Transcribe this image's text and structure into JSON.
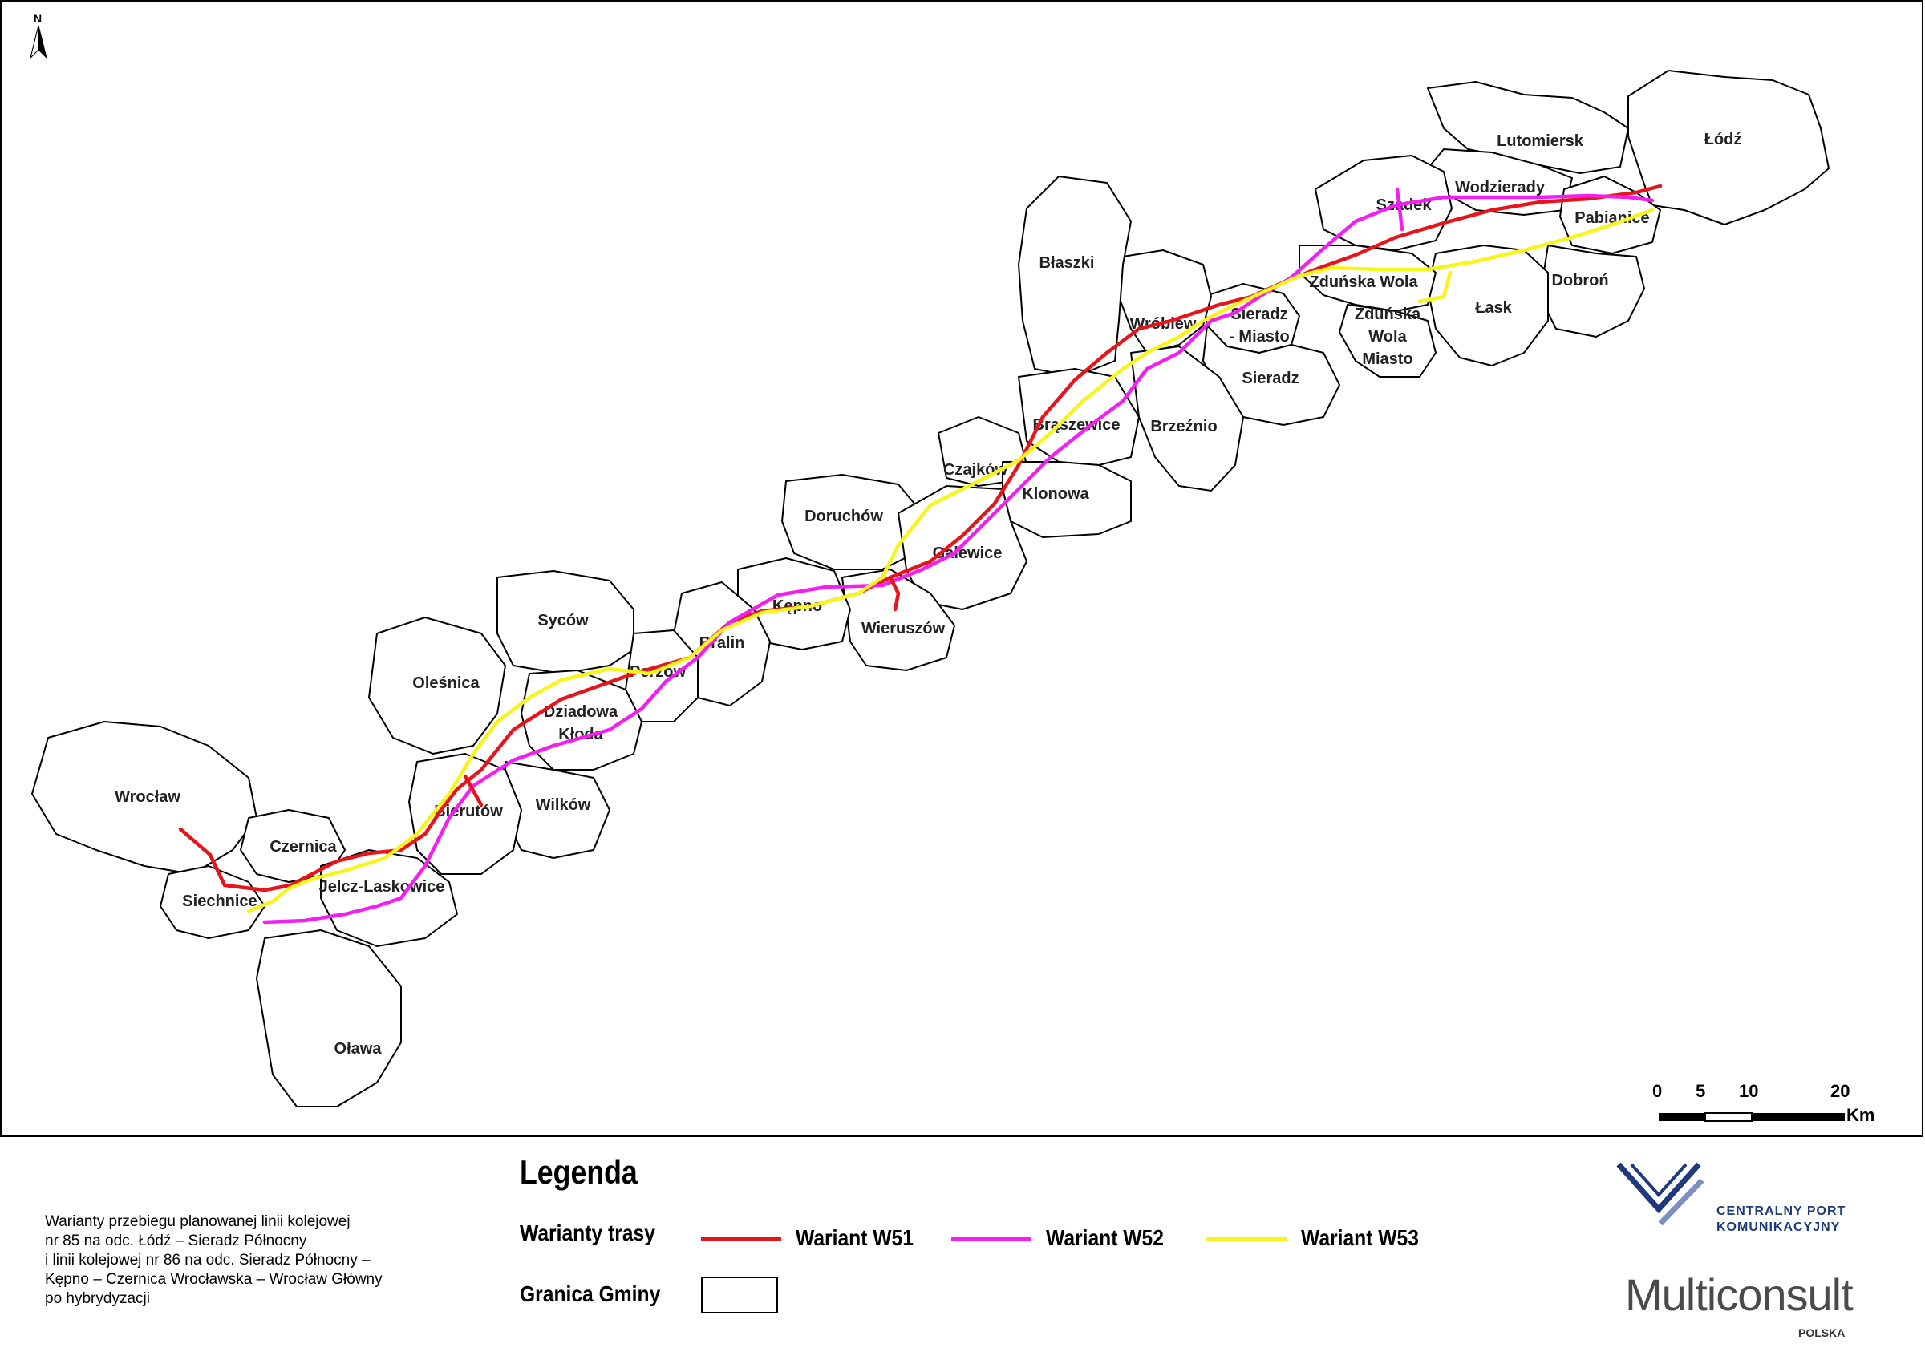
{
  "north_label": "N",
  "municipalities": [
    {
      "id": "lodz",
      "name": "Łódź"
    },
    {
      "id": "lutomiersk",
      "name": "Lutomiersk"
    },
    {
      "id": "wodzierady",
      "name": "Wodzierady"
    },
    {
      "id": "szadek",
      "name": "Szadek"
    },
    {
      "id": "pabianice",
      "name": "Pabianice"
    },
    {
      "id": "dobron",
      "name": "Dobroń"
    },
    {
      "id": "lask",
      "name": "Łask"
    },
    {
      "id": "zdunska_wola",
      "name": "Zduńska Wola"
    },
    {
      "id": "zdunska_wola_miasto",
      "name": "Zduńska Wola Miasto"
    },
    {
      "id": "sieradz_miasto",
      "name": "Sieradz - Miasto"
    },
    {
      "id": "sieradz",
      "name": "Sieradz"
    },
    {
      "id": "wroblew",
      "name": "Wróblew"
    },
    {
      "id": "blaszki",
      "name": "Błaszki"
    },
    {
      "id": "brzeznio",
      "name": "Brzeźnio"
    },
    {
      "id": "brzeszewice",
      "name": "Brąszewice"
    },
    {
      "id": "czajkow",
      "name": "Czajków"
    },
    {
      "id": "klonowa",
      "name": "Klonowa"
    },
    {
      "id": "doruchow",
      "name": "Doruchów"
    },
    {
      "id": "galewice",
      "name": "Galewice"
    },
    {
      "id": "wieruszow",
      "name": "Wieruszów"
    },
    {
      "id": "kepno",
      "name": "Kępno"
    },
    {
      "id": "bralin",
      "name": "Bralin"
    },
    {
      "id": "syców",
      "name": "Syców"
    },
    {
      "id": "perzow",
      "name": "Perzów"
    },
    {
      "id": "olesnica",
      "name": "Oleśnica"
    },
    {
      "id": "dziadowa_kloda",
      "name": "Dziadowa Kłoda"
    },
    {
      "id": "wilkow",
      "name": "Wilków"
    },
    {
      "id": "bierutow",
      "name": "Bierutów"
    },
    {
      "id": "wroclaw",
      "name": "Wrocław"
    },
    {
      "id": "czernica",
      "name": "Czernica"
    },
    {
      "id": "jelcz",
      "name": "Jelcz-Laskowice"
    },
    {
      "id": "siechnice",
      "name": "Siechnice"
    },
    {
      "id": "olawa",
      "name": "Oława"
    }
  ],
  "routes": [
    {
      "id": "W51",
      "color": "#e8141c"
    },
    {
      "id": "W52",
      "color": "#f21ff0"
    },
    {
      "id": "W53",
      "color": "#f7f51a"
    }
  ],
  "scale": {
    "ticks": [
      "0",
      "5",
      "10",
      "20"
    ],
    "unit": "Km"
  },
  "legend": {
    "title": "Legenda",
    "routes_label": "Warianty trasy",
    "items": [
      {
        "label": "Wariant W51",
        "color": "#e8141c"
      },
      {
        "label": "Wariant W52",
        "color": "#f21ff0"
      },
      {
        "label": "Wariant W53",
        "color": "#f7f51a"
      }
    ],
    "border_label": "Granica Gminy"
  },
  "caption": [
    "Warianty przebiegu planowanej linii kolejowej",
    "nr 85 na odc. Łódź – Sieradz Północny",
    "i linii kolejowej nr 86 na odc. Sieradz Północny –",
    "Kępno – Czernica Wrocławska – Wrocław Główny",
    "po hybrydyzacji"
  ],
  "logos": {
    "cpk_line1": "CENTRALNY PORT",
    "cpk_line2": "KOMUNIKACYJNY",
    "multiconsult": "Multiconsult",
    "multiconsult_sub": "POLSKA",
    "cpk_color": "#1f3a7a",
    "cpk_accent": "#7c8fc0"
  }
}
